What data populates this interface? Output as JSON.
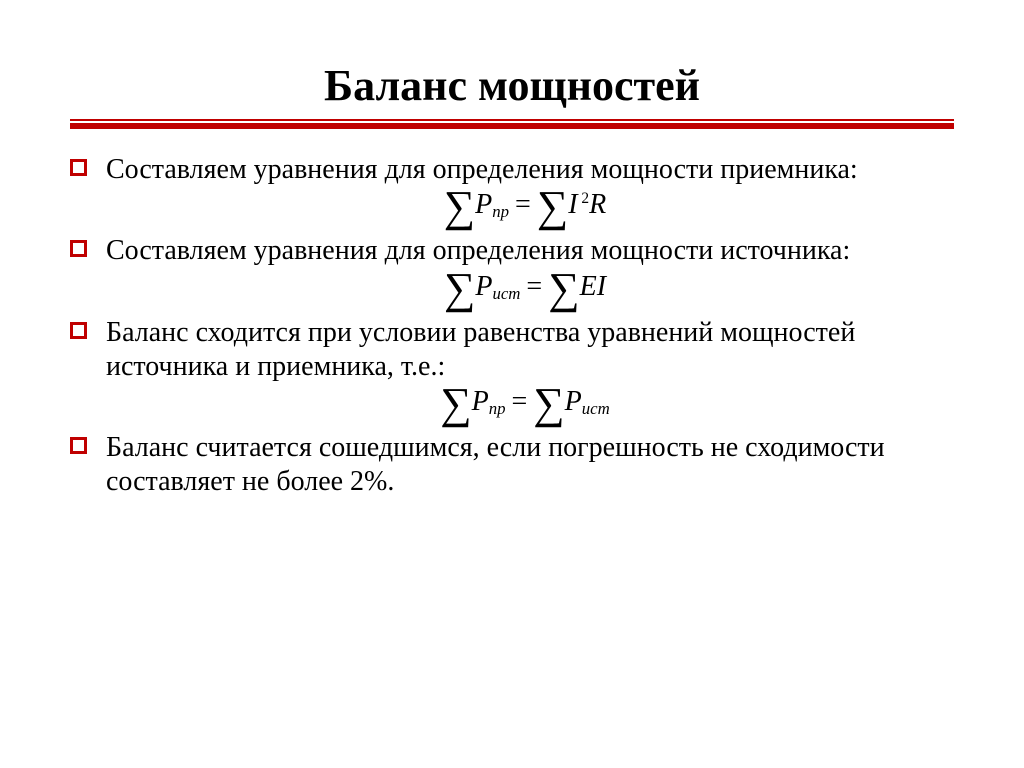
{
  "colors": {
    "accent": "#c00000",
    "text": "#000000",
    "background": "#ffffff"
  },
  "title": "Баланс мощностей",
  "items": [
    {
      "text": "Составляем уравнения для определения мощности приемника:",
      "formula": {
        "lhs_sub": "пр",
        "rhs_html": "I<sup> 2</sup>R"
      }
    },
    {
      "text": "Составляем уравнения для определения мощности источника:",
      "formula": {
        "lhs_sub": "ист",
        "rhs_html": "EI"
      }
    },
    {
      "text": "Баланс сходится при условии равенства уравнений мощностей источника и приемника, т.е.:",
      "formula": {
        "lhs_sub": "пр",
        "rhs_sum_p_sub": "ист"
      }
    },
    {
      "text": "Баланс считается сошедшимся, если погрешность не сходимости составляет не более 2%."
    }
  ]
}
